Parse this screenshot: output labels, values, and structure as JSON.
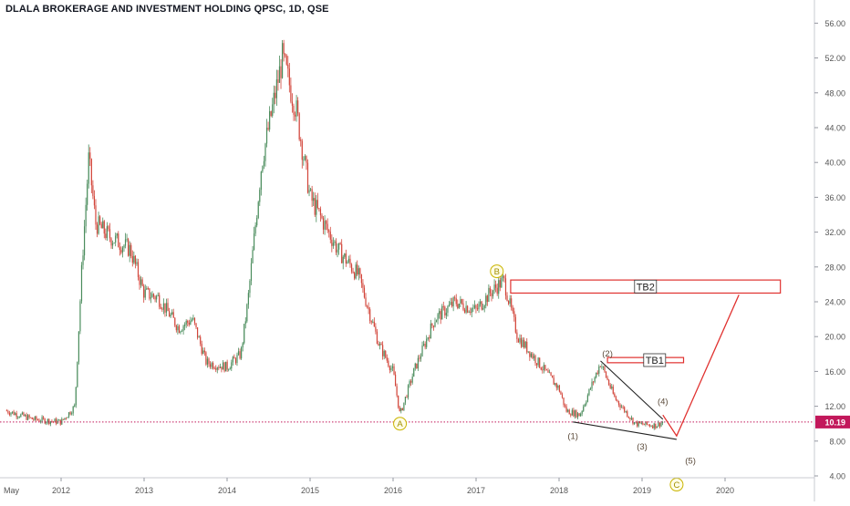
{
  "chart_data": {
    "type": "candlestick",
    "title": "DLALA BROKERAGE AND INVESTMENT HOLDING QPSC, 1D, QSE",
    "ylim": [
      0,
      56
    ],
    "y_ticks": [
      "4.00",
      "8.00",
      "12.00",
      "16.00",
      "20.00",
      "24.00",
      "28.00",
      "32.00",
      "36.00",
      "40.00",
      "44.00",
      "48.00",
      "52.00",
      "56.00"
    ],
    "x_ticks": [
      "May",
      "2012",
      "2013",
      "2014",
      "2015",
      "2016",
      "2017",
      "2018",
      "2019",
      "2020"
    ],
    "last_price": "10.19",
    "last_price_color": "#c2185b",
    "up_color": "#4a8c5c",
    "down_color": "#d2453a",
    "price_path": [
      [
        "2011-05",
        11.5
      ],
      [
        "2011-09",
        10.5
      ],
      [
        "2012-01",
        10.2
      ],
      [
        "2012-03",
        12.0
      ],
      [
        "2012-04",
        28.0
      ],
      [
        "2012-05",
        40.5
      ],
      [
        "2012-06",
        33.0
      ],
      [
        "2012-08",
        31.5
      ],
      [
        "2012-11",
        30.0
      ],
      [
        "2013-01",
        25.0
      ],
      [
        "2013-03",
        24.5
      ],
      [
        "2013-06",
        21.0
      ],
      [
        "2013-08",
        22.0
      ],
      [
        "2013-10",
        17.0
      ],
      [
        "2014-01",
        16.5
      ],
      [
        "2014-03",
        18.0
      ],
      [
        "2014-04",
        24.0
      ],
      [
        "2014-06",
        40.0
      ],
      [
        "2014-08",
        48.0
      ],
      [
        "2014-09",
        52.0
      ],
      [
        "2014-11",
        46.0
      ],
      [
        "2015-01",
        36.0
      ],
      [
        "2015-03",
        33.0
      ],
      [
        "2015-05",
        30.0
      ],
      [
        "2015-08",
        27.0
      ],
      [
        "2015-11",
        19.0
      ],
      [
        "2016-01",
        16.0
      ],
      [
        "2016-02",
        11.0
      ],
      [
        "2016-04",
        16.0
      ],
      [
        "2016-07",
        22.0
      ],
      [
        "2016-10",
        24.0
      ],
      [
        "2017-01",
        23.0
      ],
      [
        "2017-03",
        25.0
      ],
      [
        "2017-05",
        26.5
      ],
      [
        "2017-07",
        20.0
      ],
      [
        "2017-10",
        17.0
      ],
      [
        "2018-01",
        14.0
      ],
      [
        "2018-02",
        11.5
      ],
      [
        "2018-04",
        11.0
      ],
      [
        "2018-07",
        17.0
      ],
      [
        "2018-09",
        13.0
      ],
      [
        "2018-12",
        10.0
      ],
      [
        "2019-03",
        9.8
      ],
      [
        "2019-04",
        10.19
      ]
    ],
    "wave_labels": [
      {
        "label": "A",
        "date": "2016-02",
        "price": 10.0,
        "circled": true
      },
      {
        "label": "B",
        "date": "2017-04",
        "price": 27.5,
        "circled": true
      },
      {
        "label": "C",
        "date": "2019-06",
        "price": 3.0,
        "circled": true
      },
      {
        "label": "(1)",
        "date": "2018-03",
        "price": 8.6,
        "circled": false
      },
      {
        "label": "(2)",
        "date": "2018-08",
        "price": 18.1,
        "circled": false
      },
      {
        "label": "(3)",
        "date": "2019-01",
        "price": 7.4,
        "circled": false
      },
      {
        "label": "(4)",
        "date": "2019-04",
        "price": 12.6,
        "circled": false
      },
      {
        "label": "(5)",
        "date": "2019-08",
        "price": 5.8,
        "circled": false
      }
    ],
    "zones": [
      {
        "label": "TB2",
        "from": "2017-06",
        "to": "2020-09",
        "low": 25.0,
        "high": 26.5
      },
      {
        "label": "TB1",
        "from": "2018-08",
        "to": "2019-07",
        "low": 17.0,
        "high": 17.6
      }
    ],
    "wedge_upper": [
      [
        "2018-07",
        17.2
      ],
      [
        "2019-04",
        10.5
      ]
    ],
    "wedge_lower": [
      [
        "2018-03",
        10.2
      ],
      [
        "2019-06",
        8.2
      ]
    ],
    "projection": [
      [
        "2019-04",
        11.0
      ],
      [
        "2019-06",
        8.6
      ],
      [
        "2020-03",
        24.8
      ]
    ]
  }
}
